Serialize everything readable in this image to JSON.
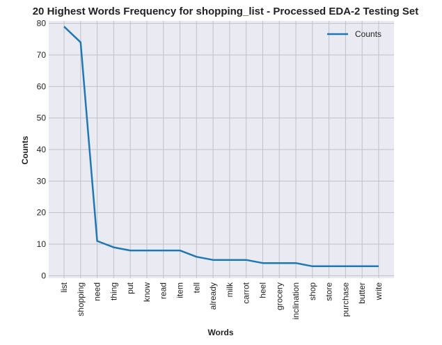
{
  "chart_data": {
    "type": "line",
    "title": "20 Highest Words Frequency for shopping_list - Processed EDA-2 Testing Set",
    "xlabel": "Words",
    "ylabel": "Counts",
    "categories": [
      "list",
      "shopping",
      "need",
      "thing",
      "put",
      "know",
      "read",
      "item",
      "tell",
      "already",
      "milk",
      "carrot",
      "heel",
      "grocery",
      "inclination",
      "shop",
      "store",
      "purchase",
      "butter",
      "write"
    ],
    "series": [
      {
        "name": "Counts",
        "values": [
          79,
          74,
          11,
          9,
          8,
          8,
          8,
          8,
          6,
          5,
          5,
          5,
          4,
          4,
          4,
          3,
          3,
          3,
          3,
          3
        ]
      }
    ],
    "yticks": [
      0,
      10,
      20,
      30,
      40,
      50,
      60,
      70,
      80
    ],
    "ylim": [
      -0.8,
      80.8
    ],
    "grid": true,
    "legend_position": "top-right",
    "colors": {
      "line": "#1f77b4",
      "plot_background": "#eaeaf2",
      "grid": "#c0c0c8",
      "text": "#222222"
    }
  }
}
